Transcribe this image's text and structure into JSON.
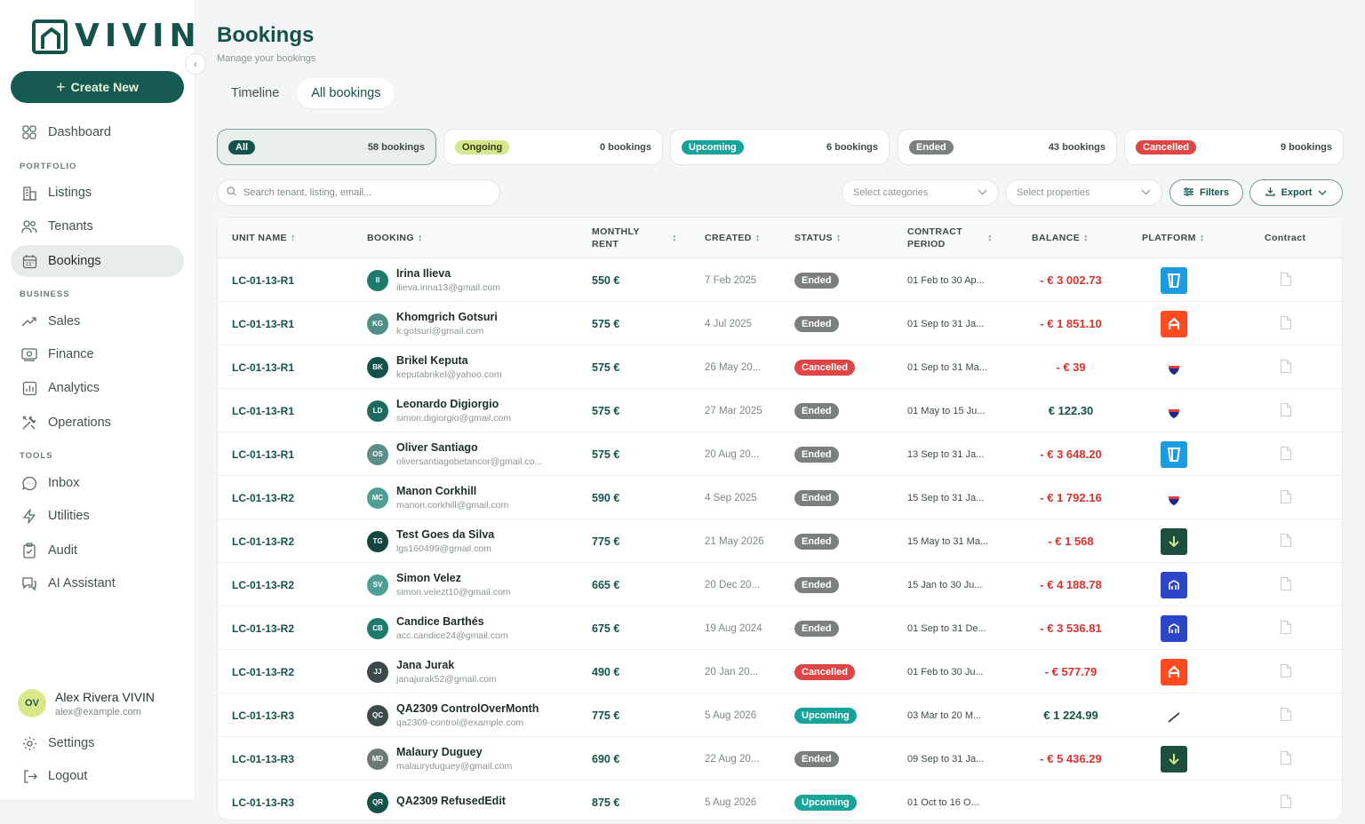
{
  "app": {
    "logo_text": "VIVIN",
    "create_label": "Create New"
  },
  "sidebar": {
    "dashboard": "Dashboard",
    "portfolio_section": "PORTFOLIO",
    "listings": "Listings",
    "tenants": "Tenants",
    "bookings": "Bookings",
    "business_section": "BUSINESS",
    "sales": "Sales",
    "finance": "Finance",
    "analytics": "Analytics",
    "operations": "Operations",
    "tools_section": "TOOLS",
    "inbox": "Inbox",
    "utilities": "Utilities",
    "audit": "Audit",
    "ai_assistant": "AI Assistant",
    "settings": "Settings",
    "logout": "Logout"
  },
  "user": {
    "initials": "OV",
    "name": "Alex Rivera VIVIN",
    "email": "alex@example.com"
  },
  "page": {
    "title": "Bookings",
    "subtitle": "Manage your bookings",
    "tab_timeline": "Timeline",
    "tab_all": "All bookings"
  },
  "status_cards": [
    {
      "label": "All",
      "count": "58 bookings",
      "bg": "#14534c",
      "fg": "#ffffff"
    },
    {
      "label": "Ongoing",
      "count": "0 bookings",
      "bg": "#d3e88a",
      "fg": "#2f3d12"
    },
    {
      "label": "Upcoming",
      "count": "6 bookings",
      "bg": "#17a39a",
      "fg": "#ffffff"
    },
    {
      "label": "Ended",
      "count": "43 bookings",
      "bg": "#7c7f80",
      "fg": "#ffffff"
    },
    {
      "label": "Cancelled",
      "count": "9 bookings",
      "bg": "#e04545",
      "fg": "#ffffff"
    }
  ],
  "filters": {
    "search_placeholder": "Search tenant, listing, email...",
    "categories_placeholder": "Select categories",
    "properties_placeholder": "Select properties",
    "filters_label": "Filters",
    "export_label": "Export"
  },
  "table": {
    "headers": {
      "unit": "UNIT NAME",
      "booking": "BOOKING",
      "rent_line1": "MONTHLY",
      "rent_line2": "RENT",
      "created": "CREATED",
      "status": "STATUS",
      "period_line1": "CONTRACT",
      "period_line2": "PERIOD",
      "balance": "BALANCE",
      "platform": "PLATFORM",
      "contract": "Contract"
    },
    "rows": [
      {
        "unit": "LC-01-13-R1",
        "initials": "II",
        "avatar": "#1f7a6e",
        "name": "Irina Ilieva",
        "email": "ilieva.irina13@gmail.com",
        "rent": "550 €",
        "created": "7 Feb 2025",
        "status": "Ended",
        "period": "01 Feb to 30 Ap...",
        "balance": "- € 3 002.73",
        "negative": true,
        "platform": "blue-tag-icon"
      },
      {
        "unit": "LC-01-13-R1",
        "initials": "KG",
        "avatar": "#4f8e86",
        "name": "Khomgrich Gotsuri",
        "email": "k.gotsuri@gmail.com",
        "rent": "575 €",
        "created": "4 Jul 2025",
        "status": "Ended",
        "period": "01 Sep to 31 Ja...",
        "balance": "- € 1 851.10",
        "negative": true,
        "platform": "orange-h-icon"
      },
      {
        "unit": "LC-01-13-R1",
        "initials": "BK",
        "avatar": "#14534c",
        "name": "Brikel Keputa",
        "email": "keputabrikel@yahoo.com",
        "rent": "575 €",
        "created": "26 May 20...",
        "status": "Cancelled",
        "period": "01 Sep to 31 Ma...",
        "balance": "- € 39",
        "negative": true,
        "platform": "flag-drop-icon"
      },
      {
        "unit": "LC-01-13-R1",
        "initials": "LD",
        "avatar": "#1f6a5e",
        "name": "Leonardo Digiorgio",
        "email": "simon.digiorgio@gmail.com",
        "rent": "575 €",
        "created": "27 Mar 2025",
        "status": "Ended",
        "period": "01 May to 15 Ju...",
        "balance": "€ 122.30",
        "negative": false,
        "platform": "flag-drop-icon"
      },
      {
        "unit": "LC-01-13-R1",
        "initials": "OS",
        "avatar": "#5a8f88",
        "name": "Oliver Santiago",
        "email": "oliversantiagobetancor@gmail.co...",
        "rent": "575 €",
        "created": "20 Aug 20...",
        "status": "Ended",
        "period": "13 Sep to 31 Ja...",
        "balance": "- € 3 648.20",
        "negative": true,
        "platform": "blue-tag-icon"
      },
      {
        "unit": "LC-01-13-R2",
        "initials": "MC",
        "avatar": "#4f9e96",
        "name": "Manon Corkhill",
        "email": "manon.corkhill@gmail.com",
        "rent": "590 €",
        "created": "4 Sep 2025",
        "status": "Ended",
        "period": "15 Sep to 31 Ja...",
        "balance": "- € 1 792.16",
        "negative": true,
        "platform": "flag-drop-icon"
      },
      {
        "unit": "LC-01-13-R2",
        "initials": "TG",
        "avatar": "#14453f",
        "name": "Test Goes da Silva",
        "email": "lgs160499@gmail.com",
        "rent": "775 €",
        "created": "21 May 2026",
        "status": "Ended",
        "period": "15 May to 31 Ma...",
        "balance": "- € 1 568",
        "negative": true,
        "platform": "green-arrow-icon"
      },
      {
        "unit": "LC-01-13-R2",
        "initials": "SV",
        "avatar": "#4f9e96",
        "name": "Simon Velez",
        "email": "simon.velezt10@gmail.com",
        "rent": "665 €",
        "created": "20 Dec 20...",
        "status": "Ended",
        "period": "15 Jan to 30 Ju...",
        "balance": "- € 4 188.78",
        "negative": true,
        "platform": "blue-house-icon"
      },
      {
        "unit": "LC-01-13-R2",
        "initials": "CB",
        "avatar": "#1f7a6e",
        "name": "Candice Barthés",
        "email": "acc.candice24@gmail.com",
        "rent": "675 €",
        "created": "19 Aug 2024",
        "status": "Ended",
        "period": "01 Sep to 31 De...",
        "balance": "- € 3 536.81",
        "negative": true,
        "platform": "blue-house-icon"
      },
      {
        "unit": "LC-01-13-R2",
        "initials": "JJ",
        "avatar": "#3a4a48",
        "name": "Jana Jurak",
        "email": "janajurak52@gmail.com",
        "rent": "490 €",
        "created": "20 Jan 20...",
        "status": "Cancelled",
        "period": "01 Feb to 30 Ju...",
        "balance": "- € 577.79",
        "negative": true,
        "platform": "orange-h-icon"
      },
      {
        "unit": "LC-01-13-R3",
        "initials": "QC",
        "avatar": "#3a4a48",
        "name": "QA2309 ControlOverMonth",
        "email": "qa2309-control@example.com",
        "rent": "775 €",
        "created": "5 Aug 2026",
        "status": "Upcoming",
        "period": "03 Mar to 20 M...",
        "balance": "€ 1 224.99",
        "negative": false,
        "platform": "slash-icon"
      },
      {
        "unit": "LC-01-13-R3",
        "initials": "MD",
        "avatar": "#6b7a77",
        "name": "Malaury Duguey",
        "email": "malauryduguey@gmail.com",
        "rent": "690 €",
        "created": "22 Aug 20...",
        "status": "Ended",
        "period": "09 Sep to 31 Ja...",
        "balance": "- € 5 436.29",
        "negative": true,
        "platform": "green-arrow-icon"
      },
      {
        "unit": "LC-01-13-R3",
        "initials": "QR",
        "avatar": "#14534c",
        "name": "QA2309 RefusedEdit",
        "email": "",
        "rent": "875 €",
        "created": "5 Aug 2026",
        "status": "Upcoming",
        "period": "01 Oct to 16 O...",
        "balance": "",
        "negative": false,
        "platform": ""
      }
    ]
  },
  "status_colors": {
    "Ended": "#7c7f80",
    "Cancelled": "#e04545",
    "Upcoming": "#17a39a",
    "negative_balance": "#d8322f",
    "positive_balance": "#14534c"
  }
}
